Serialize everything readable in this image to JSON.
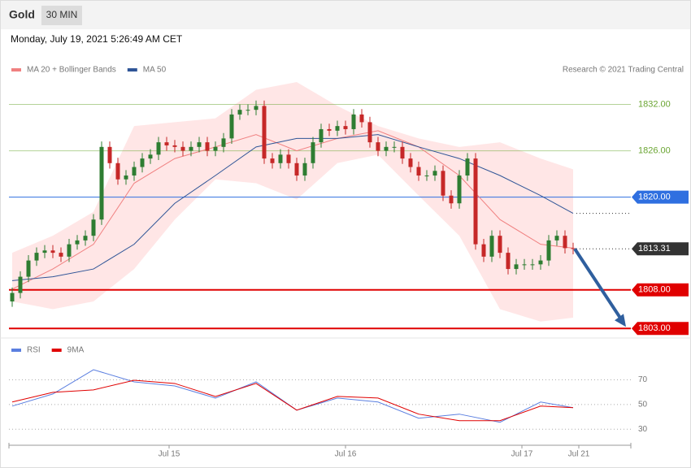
{
  "chart_data": {
    "type": "candlestick",
    "title": "Gold",
    "timeframe": "30 MIN",
    "subtitle": "Monday, July 19, 2021 5:26:49 AM CET",
    "source": "Research © 2021 Trading Central",
    "up_color": "#2e7d32",
    "down_color": "#c62828",
    "xlim": [
      -0.4,
      76.1
    ],
    "ylim": [
      1802.4,
      1835
    ],
    "xticks": [
      {
        "value": 19.3,
        "label": "Jul 15"
      },
      {
        "value": 41,
        "label": "Jul 16"
      },
      {
        "value": 62.7,
        "label": "Jul 17"
      },
      {
        "value": 69.7,
        "label": "Jul 21"
      }
    ],
    "x": [
      0,
      1,
      2,
      3,
      4,
      5,
      6,
      7,
      8,
      9,
      10,
      11,
      12,
      13,
      14,
      15,
      16,
      17,
      18,
      19,
      20,
      21,
      22,
      23,
      24,
      25,
      26,
      27,
      28,
      29,
      30,
      31,
      32,
      33,
      34,
      35,
      36,
      37,
      38,
      39,
      40,
      41,
      42,
      43,
      44,
      45,
      46,
      47,
      48,
      49,
      50,
      51,
      52,
      53,
      54,
      55,
      56,
      57,
      58,
      59,
      60,
      61,
      62,
      63,
      64,
      65,
      66,
      67,
      68,
      69
    ],
    "open": [
      1806.5,
      1807.6,
      1809.7,
      1811.8,
      1812.8,
      1813.1,
      1812.8,
      1812.3,
      1813.9,
      1814.4,
      1815.0,
      1817.1,
      1826.5,
      1824.4,
      1822.3,
      1822.8,
      1823.9,
      1825.0,
      1825.5,
      1827.1,
      1826.7,
      1826.5,
      1826.0,
      1826.5,
      1827.1,
      1826.0,
      1826.5,
      1827.6,
      1830.7,
      1831.3,
      1831.3,
      1831.8,
      1825.0,
      1824.4,
      1825.5,
      1824.4,
      1822.8,
      1824.4,
      1827.1,
      1828.8,
      1828.6,
      1829.2,
      1828.8,
      1830.7,
      1829.7,
      1827.1,
      1826.0,
      1826.5,
      1826.5,
      1825.0,
      1823.9,
      1822.8,
      1822.8,
      1823.4,
      1820.2,
      1819.2,
      1822.8,
      1825.0,
      1813.9,
      1812.3,
      1815.0,
      1812.8,
      1810.7,
      1811.3,
      1811.3,
      1811.3,
      1811.8,
      1814.4,
      1815.0,
      1813.4
    ],
    "high": [
      1808.3,
      1810.4,
      1812.5,
      1813.5,
      1813.8,
      1813.8,
      1813.5,
      1814.6,
      1815.1,
      1815.7,
      1817.8,
      1827.2,
      1827.2,
      1825.1,
      1823.5,
      1824.6,
      1825.7,
      1826.2,
      1827.8,
      1827.8,
      1827.4,
      1827.2,
      1827.2,
      1827.8,
      1827.8,
      1827.2,
      1828.3,
      1831.4,
      1832.0,
      1832.0,
      1832.5,
      1832.5,
      1825.7,
      1826.2,
      1826.2,
      1825.1,
      1825.1,
      1827.8,
      1829.5,
      1829.5,
      1829.9,
      1829.9,
      1831.4,
      1831.4,
      1830.4,
      1827.8,
      1827.2,
      1827.2,
      1827.2,
      1825.7,
      1824.6,
      1823.5,
      1824.1,
      1824.1,
      1820.9,
      1823.5,
      1825.7,
      1825.7,
      1814.6,
      1815.7,
      1815.7,
      1813.5,
      1812.0,
      1812.0,
      1812.0,
      1812.5,
      1815.1,
      1815.7,
      1815.7,
      1814.1
    ],
    "low": [
      1805.8,
      1806.9,
      1809.0,
      1811.1,
      1812.1,
      1812.1,
      1811.6,
      1811.6,
      1813.2,
      1813.7,
      1814.3,
      1816.4,
      1823.7,
      1821.6,
      1821.6,
      1822.1,
      1823.2,
      1824.3,
      1824.8,
      1826.0,
      1825.8,
      1825.3,
      1825.3,
      1825.8,
      1825.3,
      1825.3,
      1825.8,
      1826.9,
      1830.0,
      1830.6,
      1830.6,
      1824.3,
      1823.7,
      1823.7,
      1823.7,
      1822.1,
      1822.1,
      1823.7,
      1826.4,
      1827.9,
      1827.9,
      1828.1,
      1828.1,
      1829.0,
      1826.4,
      1825.3,
      1825.3,
      1825.8,
      1824.3,
      1823.2,
      1822.1,
      1822.1,
      1822.1,
      1819.5,
      1818.5,
      1818.5,
      1822.1,
      1813.2,
      1811.6,
      1811.6,
      1812.1,
      1810.0,
      1810.0,
      1810.6,
      1810.6,
      1810.6,
      1811.1,
      1813.7,
      1812.7,
      1812.6
    ],
    "close": [
      1807.6,
      1809.7,
      1811.8,
      1812.8,
      1813.1,
      1812.8,
      1812.3,
      1813.9,
      1814.4,
      1815.0,
      1817.1,
      1826.5,
      1824.4,
      1822.3,
      1822.8,
      1823.9,
      1825.0,
      1825.5,
      1827.1,
      1826.7,
      1826.5,
      1826.0,
      1826.5,
      1827.1,
      1826.0,
      1826.5,
      1827.6,
      1830.7,
      1831.3,
      1831.3,
      1831.8,
      1825.0,
      1824.4,
      1825.5,
      1824.4,
      1822.8,
      1824.4,
      1827.1,
      1828.8,
      1828.6,
      1829.2,
      1828.8,
      1830.7,
      1829.7,
      1827.1,
      1826.0,
      1826.5,
      1826.5,
      1825.0,
      1823.9,
      1822.8,
      1822.8,
      1823.4,
      1820.2,
      1819.2,
      1822.8,
      1825.0,
      1813.9,
      1812.3,
      1815.0,
      1812.8,
      1810.7,
      1811.3,
      1811.3,
      1811.3,
      1811.8,
      1814.4,
      1815.0,
      1813.4,
      1813.3
    ],
    "indicators": {
      "x": [
        0,
        5,
        10,
        15,
        20,
        25,
        30,
        35,
        40,
        45,
        50,
        55,
        60,
        65,
        69
      ],
      "series": [
        {
          "name": "MA 20 + Bollinger Bands",
          "color": "#f08080",
          "band_color": "#ffd6d6",
          "values": [
            1808.1,
            1810.7,
            1813.9,
            1821.8,
            1825.0,
            1826.5,
            1828.1,
            1826.0,
            1827.6,
            1828.6,
            1826.5,
            1822.8,
            1817.1,
            1813.9,
            1813.4
          ],
          "upper": [
            1812.8,
            1815.0,
            1818.1,
            1829.2,
            1829.7,
            1830.2,
            1833.9,
            1834.9,
            1831.8,
            1829.2,
            1827.6,
            1826.5,
            1827.1,
            1825.0,
            1823.6
          ],
          "lower": [
            1806.5,
            1805.5,
            1806.5,
            1810.7,
            1817.1,
            1822.3,
            1821.8,
            1819.7,
            1824.4,
            1825.5,
            1820.2,
            1815.0,
            1805.5,
            1803.9,
            1804.4
          ]
        },
        {
          "name": "MA 50",
          "color": "#2f5597",
          "values": [
            1809.2,
            1809.7,
            1810.7,
            1813.9,
            1819.2,
            1822.8,
            1826.5,
            1827.6,
            1827.6,
            1828.1,
            1826.5,
            1825.0,
            1822.8,
            1820.2,
            1817.9
          ]
        }
      ]
    },
    "levels": [
      {
        "value": 1832,
        "label": "1832.00",
        "color": "#6aa532",
        "style": "line"
      },
      {
        "value": 1826,
        "label": "1826.00",
        "color": "#6aa532",
        "style": "line"
      },
      {
        "value": 1820,
        "label": "1820.00",
        "color": "#2f6fe0",
        "style": "box"
      },
      {
        "value": 1813.31,
        "label": "1813.31",
        "color": "#333333",
        "style": "last"
      },
      {
        "value": 1808,
        "label": "1808.00",
        "color": "#e00000",
        "style": "box"
      },
      {
        "value": 1803,
        "label": "1803.00",
        "color": "#e00000",
        "style": "box"
      }
    ],
    "rsi": {
      "ylim": [
        19,
        88
      ],
      "yticks": [
        30,
        50,
        70
      ],
      "x": [
        0,
        5,
        10,
        15,
        20,
        25,
        30,
        35,
        40,
        45,
        50,
        55,
        60,
        65,
        69
      ],
      "series": [
        {
          "name": "RSI",
          "color": "#5b7fe0",
          "values": [
            48.7,
            58.5,
            78.1,
            68.3,
            65.0,
            55.2,
            68.3,
            45.4,
            55.2,
            52.0,
            38.9,
            42.2,
            35.6,
            52.0,
            47.4
          ]
        },
        {
          "name": "9MA",
          "color": "#e00000",
          "values": [
            52.0,
            59.8,
            61.8,
            69.6,
            67.0,
            56.5,
            67.0,
            45.4,
            56.5,
            55.2,
            42.2,
            36.9,
            36.9,
            48.7,
            47.4
          ]
        }
      ]
    }
  }
}
